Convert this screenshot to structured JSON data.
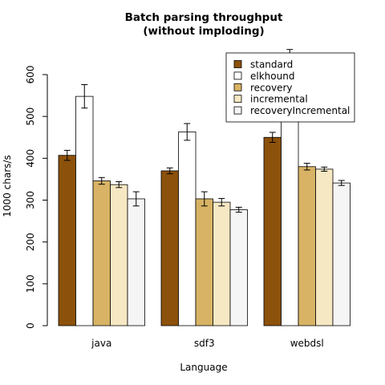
{
  "chart_data": {
    "type": "bar",
    "title": "Batch parsing throughput",
    "subtitle": "(without imploding)",
    "xlabel": "Language",
    "ylabel": "1000 chars/s",
    "ylim": [
      0,
      600
    ],
    "yticks": [
      0,
      100,
      200,
      300,
      400,
      500,
      600
    ],
    "categories": [
      "java",
      "sdf3",
      "webdsl"
    ],
    "legend_position": "top-right",
    "grid": false,
    "series": [
      {
        "name": "standard",
        "color": "#8c510a",
        "values": [
          407,
          370,
          450
        ],
        "errors": [
          12,
          7,
          12
        ]
      },
      {
        "name": "elkhound",
        "color": "#ffffff",
        "values": [
          548,
          463,
          635
        ],
        "errors": [
          28,
          20,
          25
        ]
      },
      {
        "name": "recovery",
        "color": "#d8b365",
        "values": [
          346,
          303,
          380
        ],
        "errors": [
          8,
          17,
          8
        ]
      },
      {
        "name": "incremental",
        "color": "#f6e8c3",
        "values": [
          337,
          295,
          374
        ],
        "errors": [
          7,
          9,
          5
        ]
      },
      {
        "name": "recoveryIncremental",
        "color": "#f5f5f5",
        "values": [
          303,
          277,
          341
        ],
        "errors": [
          17,
          6,
          6
        ]
      }
    ]
  }
}
